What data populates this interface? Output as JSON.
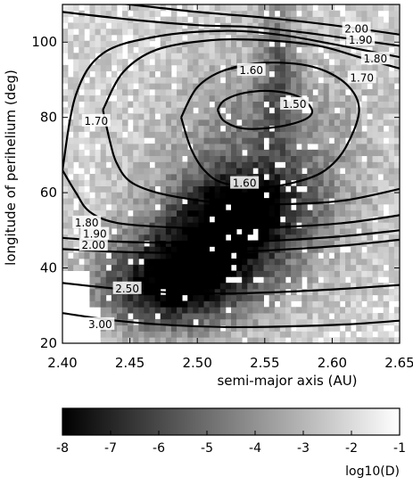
{
  "chart_data": [
    {
      "type": "heatmap",
      "title": "",
      "xlabel": "semi-major axis (AU)",
      "ylabel": "longitude of perihelium (deg)",
      "xlim": [
        2.4,
        2.65
      ],
      "ylim": [
        20,
        110
      ],
      "x_ticks": [
        2.4,
        2.45,
        2.5,
        2.55,
        2.6,
        2.65
      ],
      "x_tick_labels": [
        "2.40",
        "2.45",
        "2.50",
        "2.55",
        "2.60",
        "2.65"
      ],
      "y_ticks": [
        20,
        40,
        60,
        80,
        100
      ],
      "y_tick_labels": [
        "20",
        "40",
        "60",
        "80",
        "100"
      ],
      "grid": false,
      "colormap": {
        "low_color": "#000000",
        "high_color": "#ffffff",
        "background_color": "#ffffff",
        "nan_color": "#ffffff"
      },
      "density_field": {
        "description_of_cells": "log10(D) values on a grid; lower values are darker",
        "x_cells": 62,
        "y_cells": 56,
        "components": [
          {
            "x": 2.505,
            "y": 42,
            "sx": 0.04,
            "sy": 10,
            "value": -7.6
          },
          {
            "x": 2.535,
            "y": 56,
            "sx": 0.035,
            "sy": 8,
            "value": -6.8
          },
          {
            "x": 2.47,
            "y": 34,
            "sx": 0.035,
            "sy": 8,
            "value": -6.4
          },
          {
            "x": 2.56,
            "y": 95,
            "sx": 0.01,
            "sy": 14,
            "value": -4.8
          },
          {
            "x": 2.55,
            "y": 70,
            "sx": 0.05,
            "sy": 18,
            "value": -5.0
          }
        ],
        "base_value": -2.2,
        "empty_regions": [
          {
            "x_min": 2.4,
            "x_max": 2.43,
            "y_min": 20,
            "y_max": 30
          },
          {
            "x_min": 2.4,
            "x_max": 2.42,
            "y_min": 30,
            "y_max": 40
          }
        ]
      },
      "contours": [
        {
          "label": "1.50",
          "points": [
            [
              2.515,
              82
            ],
            [
              2.52,
              84.5
            ],
            [
              2.535,
              86.5
            ],
            [
              2.555,
              87
            ],
            [
              2.575,
              85.5
            ],
            [
              2.585,
              82
            ],
            [
              2.58,
              79.5
            ],
            [
              2.56,
              77.5
            ],
            [
              2.535,
              77
            ],
            [
              2.52,
              79
            ],
            [
              2.515,
              82
            ]
          ],
          "label_at": [
            2.572,
            83.5
          ]
        },
        {
          "label": "1.60",
          "points": [
            [
              2.488,
              80
            ],
            [
              2.5,
              88
            ],
            [
              2.52,
              92.5
            ],
            [
              2.55,
              94.5
            ],
            [
              2.585,
              93.5
            ],
            [
              2.61,
              89
            ],
            [
              2.62,
              82
            ],
            [
              2.61,
              72
            ],
            [
              2.595,
              66
            ],
            [
              2.575,
              63
            ],
            [
              2.55,
              61.5
            ],
            [
              2.52,
              62.5
            ],
            [
              2.505,
              66
            ],
            [
              2.495,
              72
            ],
            [
              2.488,
              80
            ]
          ],
          "label_at": [
            2.535,
            62.5
          ]
        },
        {
          "label": "1.60",
          "points": [
            [
              2.52,
              92.5
            ],
            [
              2.535,
              93.8
            ]
          ],
          "label_at": [
            2.54,
            92.5
          ]
        },
        {
          "label": "1.70",
          "points": [
            [
              2.43,
              82
            ],
            [
              2.435,
              74
            ],
            [
              2.44,
              68
            ],
            [
              2.45,
              63
            ],
            [
              2.47,
              60
            ],
            [
              2.5,
              58
            ],
            [
              2.53,
              57
            ],
            [
              2.57,
              57
            ],
            [
              2.61,
              58
            ],
            [
              2.65,
              61
            ]
          ],
          "label_at": [
            2.425,
            79
          ]
        },
        {
          "label": "1.70",
          "points": [
            [
              2.43,
              82
            ],
            [
              2.445,
              92
            ],
            [
              2.47,
              98
            ],
            [
              2.51,
              100.5
            ],
            [
              2.55,
              100.5
            ],
            [
              2.59,
              99
            ],
            [
              2.62,
              96
            ],
            [
              2.65,
              93
            ]
          ],
          "label_at": [
            2.622,
            90.5
          ]
        },
        {
          "label": "1.80",
          "points": [
            [
              2.4,
              66
            ],
            [
              2.41,
              60
            ],
            [
              2.42,
              55
            ],
            [
              2.44,
              52
            ],
            [
              2.48,
              50.8
            ],
            [
              2.52,
              50.5
            ],
            [
              2.57,
              51
            ],
            [
              2.61,
              52
            ],
            [
              2.65,
              54
            ]
          ],
          "label_at": [
            2.418,
            52
          ]
        },
        {
          "label": "1.80",
          "points": [
            [
              2.4,
              66
            ],
            [
              2.41,
              86
            ],
            [
              2.43,
              97
            ],
            [
              2.47,
              101.5
            ],
            [
              2.52,
              103
            ],
            [
              2.56,
              102
            ],
            [
              2.6,
              99.5
            ],
            [
              2.65,
              96
            ]
          ],
          "label_at": [
            2.632,
            95.5
          ]
        },
        {
          "label": "1.90",
          "points": [
            [
              2.4,
              48
            ],
            [
              2.44,
              47
            ],
            [
              2.48,
              46.7
            ],
            [
              2.52,
              46.8
            ],
            [
              2.56,
              47.3
            ],
            [
              2.61,
              48.5
            ],
            [
              2.65,
              50
            ]
          ],
          "label_at": [
            2.424,
            49
          ]
        },
        {
          "label": "1.90",
          "points": [
            [
              2.4,
              108
            ],
            [
              2.45,
              106
            ],
            [
              2.5,
              104.5
            ],
            [
              2.54,
              104
            ],
            [
              2.58,
              102.5
            ],
            [
              2.62,
              100.5
            ],
            [
              2.65,
              99
            ]
          ],
          "label_at": [
            2.621,
            100.5
          ]
        },
        {
          "label": "2.00",
          "points": [
            [
              2.4,
              45
            ],
            [
              2.44,
              44.3
            ],
            [
              2.48,
              44
            ],
            [
              2.52,
              44.2
            ],
            [
              2.56,
              44.8
            ],
            [
              2.61,
              46
            ],
            [
              2.65,
              47.5
            ]
          ],
          "label_at": [
            2.423,
            46
          ]
        },
        {
          "label": "2.00",
          "points": [
            [
              2.4,
              112
            ],
            [
              2.45,
              110
            ],
            [
              2.5,
              108
            ],
            [
              2.55,
              106.5
            ],
            [
              2.6,
              104.5
            ],
            [
              2.65,
              102
            ]
          ],
          "label_at": [
            2.618,
            103.5
          ]
        },
        {
          "label": "2.50",
          "points": [
            [
              2.4,
              36
            ],
            [
              2.44,
              34.5
            ],
            [
              2.48,
              33.5
            ],
            [
              2.52,
              33.2
            ],
            [
              2.56,
              33.6
            ],
            [
              2.61,
              34.5
            ],
            [
              2.65,
              35.5
            ]
          ],
          "label_at": [
            2.448,
            34.5
          ]
        },
        {
          "label": "3.00",
          "points": [
            [
              2.4,
              28
            ],
            [
              2.44,
              26
            ],
            [
              2.48,
              24.8
            ],
            [
              2.52,
              24.3
            ],
            [
              2.56,
              24.4
            ],
            [
              2.61,
              25
            ],
            [
              2.65,
              26
            ]
          ],
          "label_at": [
            2.428,
            25
          ]
        }
      ]
    },
    {
      "type": "heatmap",
      "title": "",
      "colorbar_label": "log10(D)",
      "range": [
        -8,
        -1
      ],
      "ticks": [
        -8,
        -7,
        -6,
        -5,
        -4,
        -3,
        -2,
        -1
      ],
      "tick_labels": [
        "-8",
        "-7",
        "-6",
        "-5",
        "-4",
        "-3",
        "-2",
        "-1"
      ],
      "low_color": "#000000",
      "high_color": "#ffffff"
    }
  ]
}
